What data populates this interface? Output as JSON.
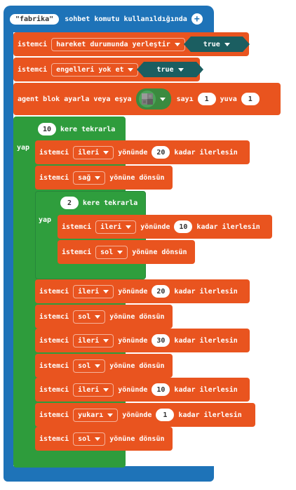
{
  "hat": {
    "arg": "\"fabrika\"",
    "label": "sohbet komutu kullanıldığında",
    "add_icon": "plus-circle-icon"
  },
  "move_mode": {
    "label": "istemci",
    "option": "hareket durumunda yerleştir",
    "value": "true"
  },
  "obstacles": {
    "label": "istemci",
    "option": "engelleri yok et",
    "value": "true"
  },
  "agent_set": {
    "label": "agent blok ayarla veya eşya",
    "item_icon": "stone-block-icon",
    "count_label": "sayı",
    "count": "1",
    "slot_label": "yuva",
    "slot": "1"
  },
  "outer_loop": {
    "times": "10",
    "label": "kere tekrarla",
    "do": "yap"
  },
  "inner_loop": {
    "times": "2",
    "label": "kere tekrarla",
    "do": "yap"
  },
  "blocks": [
    {
      "id": "b1",
      "actor": "istemci",
      "dir": "ileri",
      "mid": "yönünde",
      "num": "20",
      "end": "kadar ilerlesin"
    },
    {
      "id": "b2",
      "actor": "istemci",
      "dir": "sağ",
      "end": "yönüne dönsün"
    },
    {
      "id": "b3",
      "actor": "istemci",
      "dir": "ileri",
      "mid": "yönünde",
      "num": "10",
      "end": "kadar ilerlesin"
    },
    {
      "id": "b4",
      "actor": "istemci",
      "dir": "sol",
      "end": "yönüne dönsün"
    },
    {
      "id": "b5",
      "actor": "istemci",
      "dir": "ileri",
      "mid": "yönünde",
      "num": "20",
      "end": "kadar ilerlesin"
    },
    {
      "id": "b6",
      "actor": "istemci",
      "dir": "sol",
      "end": "yönüne dönsün"
    },
    {
      "id": "b7",
      "actor": "istemci",
      "dir": "ileri",
      "mid": "yönünde",
      "num": "30",
      "end": "kadar ilerlesin"
    },
    {
      "id": "b8",
      "actor": "istemci",
      "dir": "sol",
      "end": "yönüne dönsün"
    },
    {
      "id": "b9",
      "actor": "istemci",
      "dir": "ileri",
      "mid": "yönünde",
      "num": "10",
      "end": "kadar ilerlesin"
    },
    {
      "id": "b10",
      "actor": "istemci",
      "dir": "yukarı",
      "mid": "yönünde",
      "num": "1",
      "end": "kadar ilerlesin"
    },
    {
      "id": "b11",
      "actor": "istemci",
      "dir": "sol",
      "end": "yönüne dönsün"
    }
  ],
  "colors": {
    "event": "#1e73b8",
    "agent": "#e9541f",
    "loop": "#2e9c3c",
    "bool": "#1b5e61"
  }
}
